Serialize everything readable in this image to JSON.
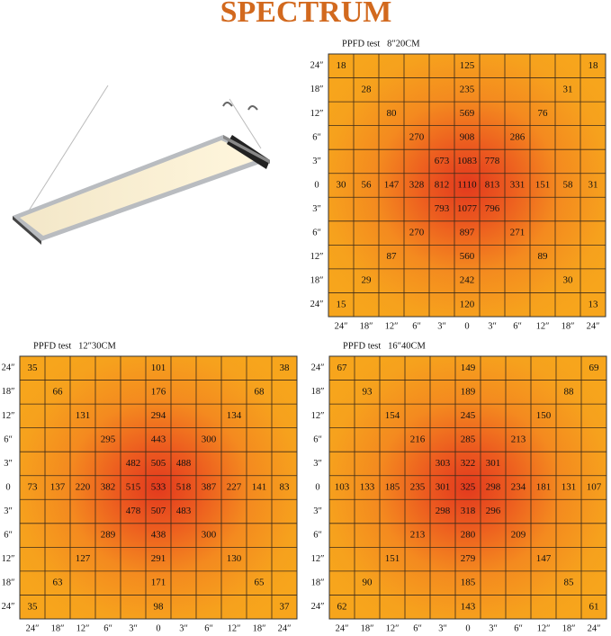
{
  "header": {
    "title": "SPECTRUM"
  },
  "grids": [
    {
      "title": "PPFD test   8″20CM",
      "row_labels": [
        "24″",
        "18″",
        "12″",
        "6″",
        "3″",
        "0",
        "3″",
        "6″",
        "12″",
        "18″",
        "24″"
      ],
      "column_labels": [
        "24″",
        "18″",
        "12″",
        "6″",
        "3″",
        "0",
        "3″",
        "6″",
        "12″",
        "18″",
        "24″"
      ],
      "rows": [
        [
          18,
          null,
          null,
          null,
          null,
          125,
          null,
          null,
          null,
          null,
          18
        ],
        [
          null,
          28,
          null,
          null,
          null,
          235,
          null,
          null,
          null,
          31,
          null
        ],
        [
          null,
          null,
          80,
          null,
          null,
          569,
          null,
          null,
          76,
          null,
          null
        ],
        [
          null,
          null,
          null,
          270,
          null,
          908,
          null,
          286,
          null,
          null,
          null
        ],
        [
          null,
          null,
          null,
          null,
          673,
          1083,
          778,
          null,
          null,
          null,
          null
        ],
        [
          30,
          56,
          147,
          328,
          812,
          1110,
          813,
          331,
          151,
          58,
          31
        ],
        [
          null,
          null,
          null,
          null,
          793,
          1077,
          796,
          null,
          null,
          null,
          null
        ],
        [
          null,
          null,
          null,
          270,
          null,
          897,
          null,
          271,
          null,
          null,
          null
        ],
        [
          null,
          null,
          87,
          null,
          null,
          560,
          null,
          null,
          89,
          null,
          null
        ],
        [
          null,
          29,
          null,
          null,
          null,
          242,
          null,
          null,
          null,
          30,
          null
        ],
        [
          15,
          null,
          null,
          null,
          null,
          120,
          null,
          null,
          null,
          null,
          13
        ]
      ]
    },
    {
      "title": "PPFD test   12″30CM",
      "row_labels": [
        "24″",
        "18″",
        "12″",
        "6″",
        "3″",
        "0",
        "3″",
        "6″",
        "12″",
        "18″",
        "24″"
      ],
      "column_labels": [
        "24″",
        "18″",
        "12″",
        "6″",
        "3″",
        "0",
        "3″",
        "6″",
        "12″",
        "18″",
        "24″"
      ],
      "rows": [
        [
          35,
          null,
          null,
          null,
          null,
          101,
          null,
          null,
          null,
          null,
          38
        ],
        [
          null,
          66,
          null,
          null,
          null,
          176,
          null,
          null,
          null,
          68,
          null
        ],
        [
          null,
          null,
          131,
          null,
          null,
          294,
          null,
          null,
          134,
          null,
          null
        ],
        [
          null,
          null,
          null,
          295,
          null,
          443,
          null,
          300,
          null,
          null,
          null
        ],
        [
          null,
          null,
          null,
          null,
          482,
          505,
          488,
          null,
          null,
          null,
          null
        ],
        [
          73,
          137,
          220,
          382,
          515,
          533,
          518,
          387,
          227,
          141,
          83
        ],
        [
          null,
          null,
          null,
          null,
          478,
          507,
          483,
          null,
          null,
          null,
          null
        ],
        [
          null,
          null,
          null,
          289,
          null,
          438,
          null,
          300,
          null,
          null,
          null
        ],
        [
          null,
          null,
          127,
          null,
          null,
          291,
          null,
          null,
          130,
          null,
          null
        ],
        [
          null,
          63,
          null,
          null,
          null,
          171,
          null,
          null,
          null,
          65,
          null
        ],
        [
          35,
          null,
          null,
          null,
          null,
          98,
          null,
          null,
          null,
          null,
          37
        ]
      ]
    },
    {
      "title": "PPFD test   16″40CM",
      "row_labels": [
        "24″",
        "18″",
        "12″",
        "6″",
        "3″",
        "0",
        "3″",
        "6″",
        "12″",
        "18″",
        "24″"
      ],
      "column_labels": [
        "24″",
        "18″",
        "12″",
        "6″",
        "3″",
        "0",
        "3″",
        "6″",
        "12″",
        "18″",
        "24″"
      ],
      "rows": [
        [
          67,
          null,
          null,
          null,
          null,
          149,
          null,
          null,
          null,
          null,
          69
        ],
        [
          null,
          93,
          null,
          null,
          null,
          189,
          null,
          null,
          null,
          88,
          null
        ],
        [
          null,
          null,
          154,
          null,
          null,
          245,
          null,
          null,
          150,
          null,
          null
        ],
        [
          null,
          null,
          null,
          216,
          null,
          285,
          null,
          213,
          null,
          null,
          null
        ],
        [
          null,
          null,
          null,
          null,
          303,
          322,
          301,
          null,
          null,
          null,
          null
        ],
        [
          103,
          133,
          185,
          235,
          301,
          325,
          298,
          234,
          181,
          131,
          107
        ],
        [
          null,
          null,
          null,
          null,
          298,
          318,
          296,
          null,
          null,
          null,
          null
        ],
        [
          null,
          null,
          null,
          213,
          null,
          280,
          null,
          209,
          null,
          null,
          null
        ],
        [
          null,
          null,
          151,
          null,
          null,
          279,
          null,
          null,
          147,
          null,
          null
        ],
        [
          null,
          90,
          null,
          null,
          null,
          185,
          null,
          null,
          null,
          85,
          null
        ],
        [
          62,
          null,
          null,
          null,
          null,
          143,
          null,
          null,
          null,
          null,
          61
        ]
      ]
    }
  ]
}
